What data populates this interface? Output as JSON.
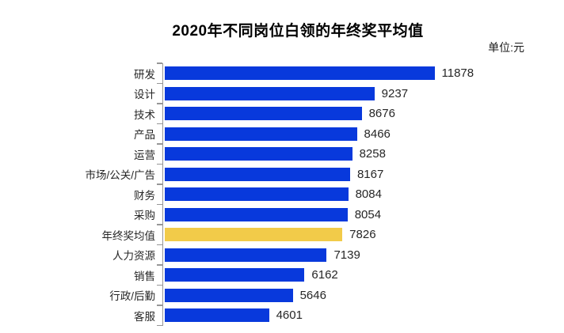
{
  "title": "2020年不同岗位白领的年终奖平均值",
  "unit_label": "单位:元",
  "colors": {
    "bar_default": "#0839dc",
    "bar_highlight": "#f2cb49",
    "axis": "#969696",
    "title_text": "#000000",
    "label_text": "#262626"
  },
  "chart_data": {
    "type": "bar",
    "orientation": "horizontal",
    "title": "2020年不同岗位白领的年终奖平均值",
    "unit": "元",
    "categories": [
      "研发",
      "设计",
      "技术",
      "产品",
      "运营",
      "市场/公关/广告",
      "财务",
      "采购",
      "年终奖均值",
      "人力资源",
      "销售",
      "行政/后勤",
      "客服"
    ],
    "values": [
      11878,
      9237,
      8676,
      8466,
      8258,
      8167,
      8084,
      8054,
      7826,
      7139,
      6162,
      5646,
      4601
    ],
    "highlight_category": "年终奖均值",
    "highlight_index": 8,
    "value_labels": true,
    "xlabel": "",
    "ylabel": "",
    "xlim": [
      0,
      12000
    ],
    "grid": false,
    "legend": false
  }
}
